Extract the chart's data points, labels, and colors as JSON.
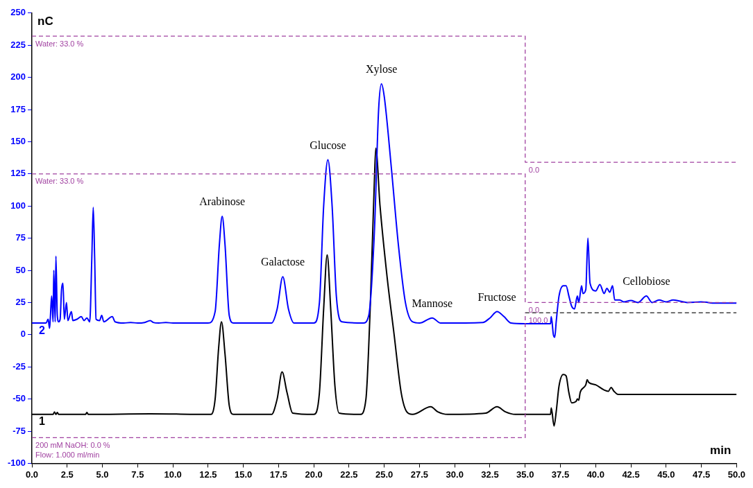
{
  "chart_data": {
    "type": "line",
    "xlabel": "min",
    "ylabel": "nC",
    "xlim": [
      0,
      50
    ],
    "ylim": [
      -100,
      250
    ],
    "xticks": [
      {
        "value": 0,
        "label": "0.0"
      },
      {
        "value": 2.5,
        "label": "2.5"
      },
      {
        "value": 5,
        "label": "5.0"
      },
      {
        "value": 7.5,
        "label": "7.5"
      },
      {
        "value": 10,
        "label": "10.0"
      },
      {
        "value": 12.5,
        "label": "12.5"
      },
      {
        "value": 15,
        "label": "15.0"
      },
      {
        "value": 17.5,
        "label": "17.5"
      },
      {
        "value": 20,
        "label": "20.0"
      },
      {
        "value": 22.5,
        "label": "22.5"
      },
      {
        "value": 25,
        "label": "25.0"
      },
      {
        "value": 27.5,
        "label": "27.5"
      },
      {
        "value": 30,
        "label": "30.0"
      },
      {
        "value": 32.5,
        "label": "32.5"
      },
      {
        "value": 35,
        "label": "35.0"
      },
      {
        "value": 37.5,
        "label": "37.5"
      },
      {
        "value": 40,
        "label": "40.0"
      },
      {
        "value": 42.5,
        "label": "42.5"
      },
      {
        "value": 45,
        "label": "45.0"
      },
      {
        "value": 47.5,
        "label": "47.5"
      },
      {
        "value": 50,
        "label": "50.0"
      }
    ],
    "yticks": [
      -100,
      -75,
      -50,
      -25,
      0,
      25,
      50,
      75,
      100,
      125,
      150,
      175,
      200,
      225,
      250
    ],
    "grid": false,
    "legend": "left",
    "marker": "none",
    "series": [
      {
        "name": "2",
        "color": "#0000ff",
        "line_style": "solid",
        "x": [
          0,
          1.0,
          1.15,
          1.25,
          1.3,
          1.4,
          1.5,
          1.55,
          1.65,
          1.7,
          1.8,
          1.9,
          2.0,
          2.1,
          2.2,
          2.3,
          2.45,
          2.55,
          2.8,
          2.9,
          3.2,
          3.5,
          3.7,
          3.9,
          4.1,
          4.25,
          4.35,
          4.45,
          4.55,
          4.8,
          4.95,
          5.1,
          5.7,
          5.9,
          6.5,
          7.0,
          7.5,
          8.0,
          8.4,
          8.6,
          9.0,
          9.5,
          10,
          12.5,
          13.0,
          13.3,
          13.5,
          13.7,
          14.0,
          14.3,
          17.0,
          17.4,
          17.8,
          18.2,
          18.6,
          20.0,
          20.4,
          20.7,
          21.0,
          21.3,
          21.6,
          22.0,
          23.5,
          23.9,
          24.3,
          24.6,
          24.8,
          25.0,
          25.5,
          26.0,
          26.5,
          27.0,
          27.5,
          28.4,
          29.0,
          32.0,
          32.5,
          33.0,
          33.5,
          34.0,
          35.0,
          36.8,
          36.85,
          37.0,
          37.1,
          37.2,
          37.4,
          37.7,
          37.9,
          38.1,
          38.3,
          38.5,
          38.7,
          38.8,
          39.0,
          39.1,
          39.3,
          39.45,
          39.6,
          40.0,
          40.3,
          40.6,
          40.8,
          41.0,
          41.2,
          41.35,
          41.7,
          42.0,
          42.5,
          43.0,
          43.6,
          44.0,
          44.5,
          45.0,
          45.5,
          46.0,
          46.5,
          47.5,
          48.5,
          50
        ],
        "values": [
          9,
          9,
          12,
          5,
          12,
          30,
          10,
          50,
          10,
          61,
          15,
          10,
          12,
          35,
          40,
          12,
          25,
          11,
          18,
          11,
          12,
          14,
          11,
          13,
          10,
          60,
          99,
          60,
          12,
          11,
          15,
          10,
          14,
          10,
          9,
          9.5,
          9,
          9.5,
          11,
          9.5,
          9,
          9.5,
          9,
          9,
          18,
          70,
          92,
          70,
          15,
          9,
          9,
          20,
          45,
          20,
          9,
          9,
          25,
          100,
          136,
          100,
          30,
          10,
          9,
          15,
          80,
          175,
          195,
          185,
          130,
          70,
          25,
          10,
          9,
          13,
          9,
          9.5,
          13,
          18,
          14,
          9,
          8.5,
          8.5,
          14,
          0,
          -2,
          10,
          30,
          38,
          38,
          30,
          22,
          20,
          30,
          25,
          38,
          32,
          35,
          75,
          40,
          34,
          39,
          32,
          36,
          33,
          38,
          27,
          27,
          25.5,
          26.5,
          25,
          30,
          25,
          27,
          25.5,
          27,
          26,
          25,
          25.5,
          24.5,
          24.5
        ]
      },
      {
        "name": "1",
        "color": "#000000",
        "line_style": "solid",
        "x": [
          0,
          1.5,
          1.6,
          1.7,
          1.8,
          1.9,
          3.8,
          3.9,
          4.0,
          8.4,
          12.7,
          13.0,
          13.25,
          13.45,
          13.7,
          14.0,
          14.3,
          17.0,
          17.4,
          17.75,
          18.1,
          18.5,
          20.0,
          20.4,
          20.7,
          20.95,
          21.2,
          21.5,
          21.8,
          23.3,
          23.7,
          24.0,
          24.3,
          24.4,
          24.7,
          25.2,
          25.7,
          26.2,
          26.6,
          27.0,
          28.3,
          28.8,
          29.5,
          32.2,
          33.0,
          33.6,
          34.3,
          36.8,
          36.85,
          37.05,
          37.2,
          37.4,
          37.7,
          37.9,
          38.1,
          38.3,
          38.6,
          38.7,
          38.8,
          38.9,
          39.3,
          39.4,
          39.5,
          40.0,
          40.6,
          40.9,
          41.1,
          41.3,
          41.6,
          50
        ],
        "values": [
          -62,
          -62,
          -60,
          -62,
          -60.5,
          -62,
          -62,
          -60.5,
          -62,
          -61.5,
          -62,
          -50,
          -10,
          10,
          -15,
          -55,
          -62,
          -62,
          -50,
          -29,
          -45,
          -61,
          -62,
          -45,
          20,
          62,
          20,
          -40,
          -61,
          -62,
          -50,
          20,
          120,
          145,
          100,
          45,
          0,
          -45,
          -60,
          -62,
          -56,
          -60,
          -62,
          -61,
          -56,
          -60,
          -62,
          -62,
          -57,
          -71,
          -60,
          -40,
          -31,
          -32,
          -45,
          -53,
          -52,
          -50,
          -51,
          -45,
          -39,
          -35,
          -37,
          -39,
          -43,
          -44,
          -41,
          -44,
          -46.5,
          -46.5
        ]
      },
      {
        "color": "#a040a0",
        "line_style": "dashed",
        "x": [
          0,
          35,
          35,
          50
        ],
        "values": [
          232,
          232,
          134,
          134
        ]
      },
      {
        "color": "#a040a0",
        "line_style": "dashed",
        "x": [
          0,
          35,
          35,
          50
        ],
        "values": [
          125,
          125,
          25,
          25
        ]
      },
      {
        "color": "#a040a0",
        "line_style": "dashed",
        "x": [
          0,
          35,
          35
        ],
        "values": [
          -80,
          -80,
          17
        ]
      },
      {
        "color": "#404040",
        "line_style": "dashed",
        "x": [
          35,
          50
        ],
        "values": [
          17,
          17
        ]
      }
    ],
    "annotations": [
      {
        "text": "Arabinose",
        "x": 13.5,
        "y": 92
      },
      {
        "text": "Galactose",
        "x": 17.8,
        "y": 45
      },
      {
        "text": "Glucose",
        "x": 21,
        "y": 136
      },
      {
        "text": "Xylose",
        "x": 24.8,
        "y": 195
      },
      {
        "text": "Mannose",
        "x": 28.4,
        "y": 13
      },
      {
        "text": "Fructose",
        "x": 33,
        "y": 18
      },
      {
        "text": "Cellobiose",
        "x": 43.6,
        "y": 30
      },
      {
        "text": "Water: 33.0 %",
        "x": 0,
        "y": 232
      },
      {
        "text": "0.0",
        "x": 35,
        "y": 134
      },
      {
        "text": "Water: 33.0 %",
        "x": 0,
        "y": 125
      },
      {
        "text": "0.0",
        "x": 35,
        "y": 25
      },
      {
        "text": "100.0",
        "x": 35,
        "y": 17
      },
      {
        "text": "200 mM NaOH: 0.0 %",
        "x": 0,
        "y": -80
      },
      "Flow: 1.000 ml/min"
    ]
  }
}
